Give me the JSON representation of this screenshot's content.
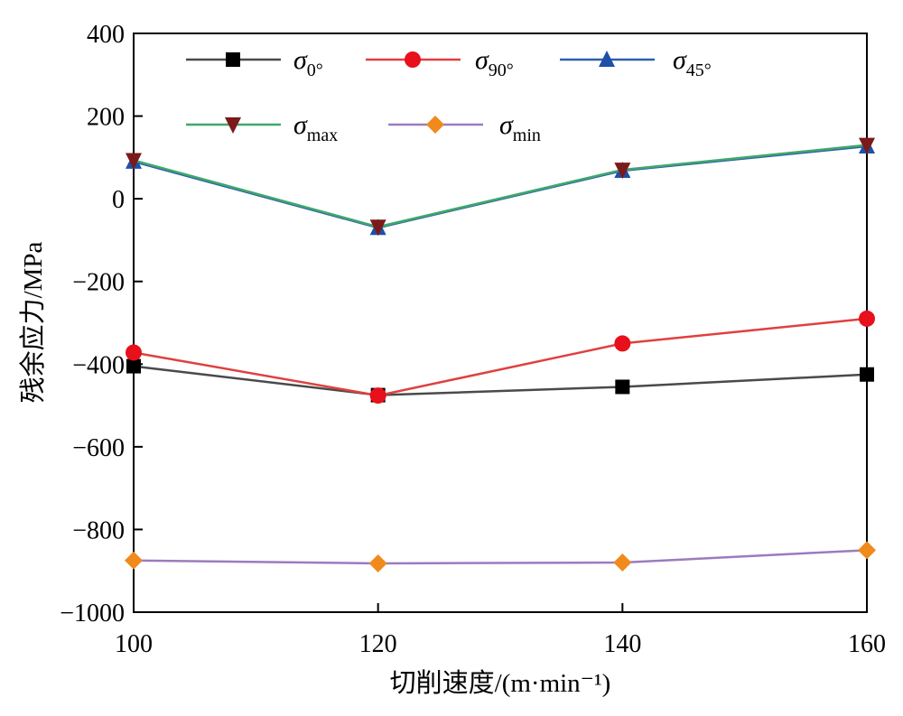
{
  "chart_data": {
    "type": "line",
    "xlabel": "切削速度/(m·min⁻¹)",
    "ylabel": "残余应力/MPa",
    "xlim": [
      100,
      160
    ],
    "ylim": [
      -1000,
      400
    ],
    "xticks": [
      "100",
      "120",
      "140",
      "160"
    ],
    "yticks": [
      "400",
      "200",
      "0",
      "−200",
      "−400",
      "−600",
      "−800",
      "−1000"
    ],
    "grid": false,
    "legend_position": "top",
    "x": [
      100,
      120,
      140,
      160
    ],
    "series": [
      {
        "name": "σ",
        "subscript": "0°",
        "marker": "square",
        "color": "#4a4a4a",
        "marker_color": "#000000",
        "values": [
          -405,
          -475,
          -455,
          -425
        ]
      },
      {
        "name": "σ",
        "subscript": "90°",
        "marker": "circle",
        "color": "#e04040",
        "marker_color": "#e8101a",
        "values": [
          -372,
          -476,
          -350,
          -290
        ]
      },
      {
        "name": "σ",
        "subscript": "45°",
        "marker": "triangle-up",
        "color": "#2f5fae",
        "marker_color": "#1f4fa8",
        "values": [
          90,
          -70,
          68,
          127
        ]
      },
      {
        "name": "σ",
        "subscript": "max",
        "marker": "triangle-down",
        "color": "#3fa86a",
        "marker_color": "#7b1a1a",
        "values": [
          93,
          -68,
          70,
          130
        ]
      },
      {
        "name": "σ",
        "subscript": "min",
        "marker": "diamond",
        "color": "#9b7bbf",
        "marker_color": "#f08a1c",
        "values": [
          -875,
          -882,
          -880,
          -850
        ]
      }
    ]
  }
}
